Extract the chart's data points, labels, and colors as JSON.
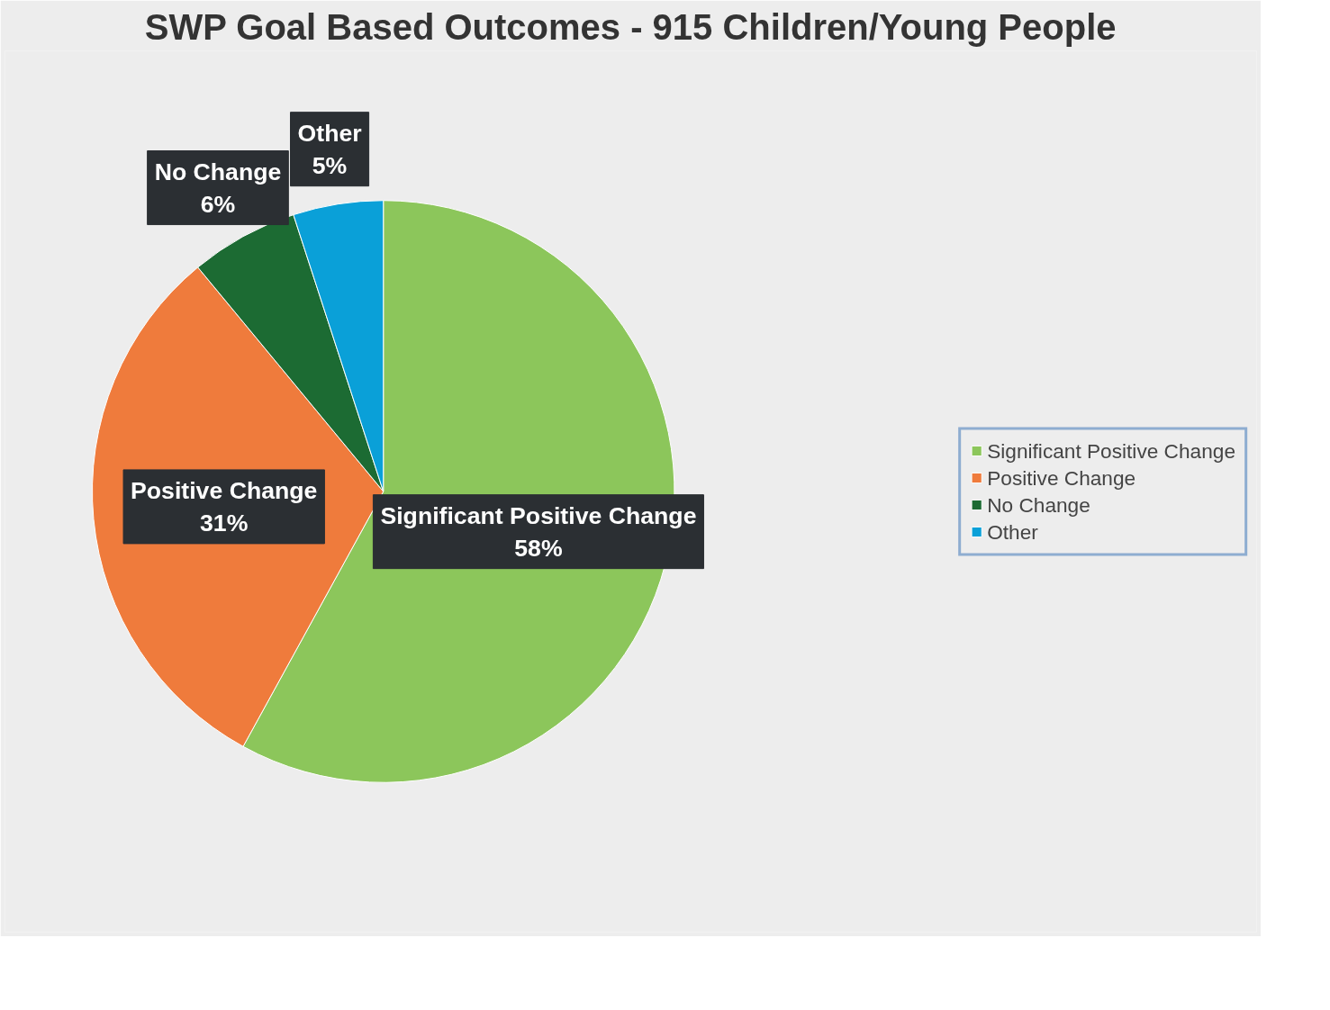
{
  "chart_data": {
    "type": "pie",
    "title": "SWP Goal Based Outcomes - 915 Children/Young People",
    "categories": [
      "Significant Positive Change",
      "Positive Change",
      "No Change",
      "Other"
    ],
    "values": [
      58,
      31,
      6,
      5
    ],
    "colors": [
      "#8cc65b",
      "#ef7b3c",
      "#1c6b33",
      "#0aa0d8"
    ],
    "value_labels": [
      "58%",
      "31%",
      "6%",
      "5%"
    ],
    "legend": "right"
  }
}
